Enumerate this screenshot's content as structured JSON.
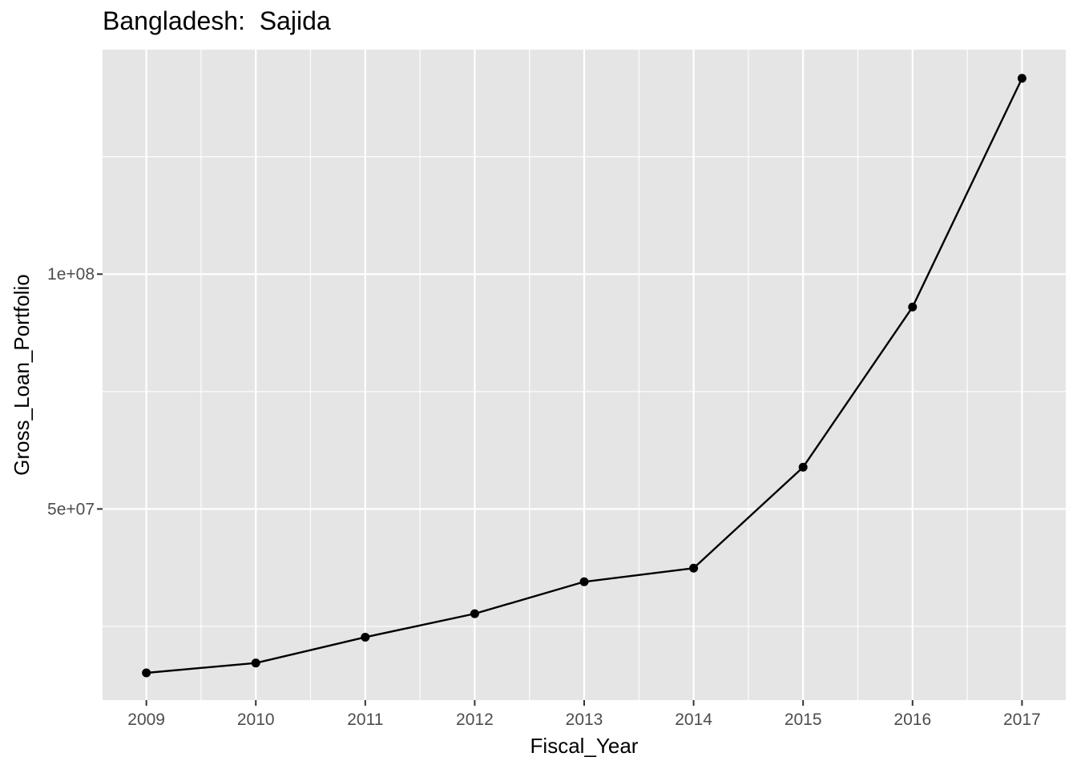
{
  "chart_data": {
    "type": "line",
    "title": "Bangladesh:  Sajida",
    "xlabel": "Fiscal_Year",
    "ylabel": "Gross_Loan_Portfolio",
    "x": [
      2009,
      2010,
      2011,
      2012,
      2013,
      2014,
      2015,
      2016,
      2017
    ],
    "y_ticks": [
      {
        "value": 50000000,
        "label": "5e+07"
      },
      {
        "value": 100000000,
        "label": "1e+08"
      }
    ],
    "series": [
      {
        "values": [
          15100000,
          17200000,
          22700000,
          27700000,
          34500000,
          37400000,
          58900000,
          93000000,
          141700000
        ]
      }
    ],
    "xlim": [
      2008.6,
      2017.4
    ],
    "ylim": [
      9300000,
      147800000
    ],
    "grid": true,
    "panel_background": "#e5e5e5",
    "grid_color": "#ffffff",
    "line_color": "#000000",
    "point_color": "#000000"
  }
}
